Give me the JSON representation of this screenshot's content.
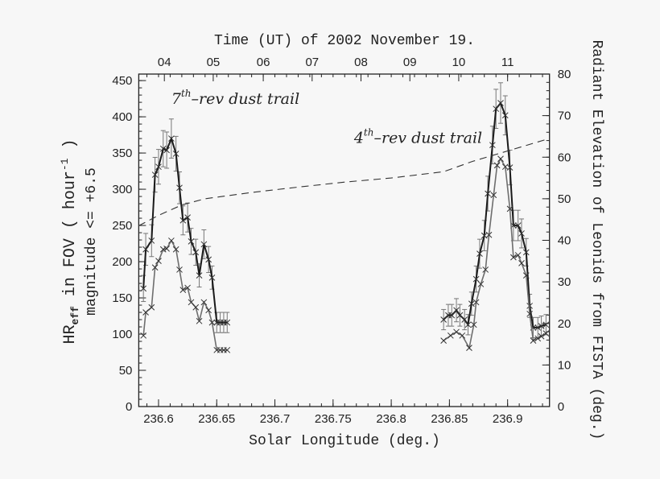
{
  "chart_data": {
    "type": "line",
    "title": "Time (UT) of 2002 November 19.",
    "xlabel": "Solar Longitude (deg.)",
    "ylabel_left": {
      "line1_main": "HR",
      "line1_sub": "eff",
      "line1_rest": " in FOV ( hour",
      "line1_sup": "-1",
      "line1_end": " )",
      "line2": "magnitude <= +6.5"
    },
    "ylabel_right": "Radiant Elevation of Leonids from FISTA (deg.)",
    "xlim": [
      236.583,
      236.936
    ],
    "ylim_left": [
      0,
      459
    ],
    "ylim_right": [
      0,
      80
    ],
    "grid": false,
    "x_ticks": [
      "236.6",
      "236.65",
      "236.7",
      "236.75",
      "236.8",
      "236.85",
      "236.9"
    ],
    "y_ticks_left": [
      "0",
      "50",
      "100",
      "150",
      "200",
      "250",
      "300",
      "350",
      "400",
      "450"
    ],
    "y_ticks_right": [
      "0",
      "10",
      "20",
      "30",
      "40",
      "50",
      "60",
      "70",
      "80"
    ],
    "top_axis_ticks": [
      {
        "label": "04",
        "x": 236.605
      },
      {
        "label": "05",
        "x": 236.647
      },
      {
        "label": "06",
        "x": 236.69
      },
      {
        "label": "07",
        "x": 236.732
      },
      {
        "label": "08",
        "x": 236.774
      },
      {
        "label": "09",
        "x": 236.816
      },
      {
        "label": "10",
        "x": 236.858
      },
      {
        "label": "11",
        "x": 236.9
      }
    ],
    "annotations": [
      {
        "pre": "7",
        "sup": "th",
        "post": "–rev dust trail",
        "x": 236.611,
        "y": 418
      },
      {
        "pre": "4",
        "sup": "th",
        "post": "–rev dust trail",
        "x": 236.768,
        "y": 364
      }
    ],
    "series": [
      {
        "axis": "left",
        "style": "dark",
        "errorbars": true,
        "x": [
          236.587,
          236.589,
          236.594,
          236.597,
          236.6,
          236.604,
          236.607,
          236.611,
          236.615,
          236.618,
          236.621,
          236.625,
          236.628,
          236.632,
          236.635,
          236.639,
          236.643,
          236.646,
          236.65,
          236.653,
          236.656,
          236.659
        ],
        "y": [
          163,
          217,
          229,
          320,
          331,
          356,
          354,
          370,
          349,
          302,
          257,
          261,
          228,
          213,
          181,
          224,
          203,
          178,
          116,
          116,
          116,
          116
        ],
        "err": [
          18,
          22,
          22,
          24,
          24,
          25,
          25,
          27,
          24,
          22,
          20,
          20,
          18,
          18,
          16,
          20,
          18,
          16,
          14,
          14,
          14,
          14
        ]
      },
      {
        "axis": "left",
        "style": "light",
        "errorbars": false,
        "x": [
          236.587,
          236.589,
          236.594,
          236.597,
          236.6,
          236.604,
          236.607,
          236.611,
          236.615,
          236.618,
          236.621,
          236.625,
          236.628,
          236.632,
          236.635,
          236.639,
          236.643,
          236.646,
          236.65,
          236.653,
          236.656,
          236.659
        ],
        "y": [
          98,
          130,
          137,
          192,
          201,
          217,
          218,
          229,
          217,
          189,
          161,
          164,
          144,
          137,
          118,
          144,
          133,
          116,
          78,
          78,
          78,
          78
        ]
      },
      {
        "axis": "left",
        "style": "dark",
        "errorbars": true,
        "x": [
          236.845,
          236.849,
          236.852,
          236.856,
          236.859,
          236.863,
          236.866,
          236.869,
          236.873,
          236.876,
          236.88,
          236.883,
          236.887,
          236.89,
          236.894,
          236.898,
          236.902,
          236.905,
          236.909,
          236.912,
          236.916,
          236.919,
          236.922,
          236.926,
          236.929,
          236.933
        ],
        "y": [
          120,
          126,
          126,
          133,
          126,
          120,
          113,
          142,
          176,
          211,
          236,
          294,
          361,
          411,
          419,
          402,
          330,
          250,
          250,
          239,
          213,
          139,
          109,
          109,
          111,
          113
        ],
        "err": [
          14,
          15,
          15,
          16,
          15,
          14,
          14,
          16,
          18,
          20,
          21,
          24,
          26,
          27,
          28,
          27,
          24,
          21,
          21,
          20,
          19,
          16,
          14,
          14,
          14,
          14
        ]
      },
      {
        "axis": "left",
        "style": "light",
        "errorbars": false,
        "x": [
          236.845,
          236.851,
          236.856,
          236.861,
          236.867,
          236.871,
          236.873,
          236.877,
          236.881,
          236.884,
          236.888,
          236.891,
          236.894,
          236.898,
          236.902,
          236.905,
          236.909,
          236.912,
          236.916,
          236.919,
          236.922,
          236.926,
          236.929,
          236.933
        ],
        "y": [
          91,
          98,
          103,
          98,
          81,
          113,
          144,
          169,
          189,
          237,
          292,
          333,
          342,
          331,
          273,
          206,
          209,
          198,
          181,
          128,
          91,
          94,
          97,
          101
        ]
      },
      {
        "axis": "right",
        "style": "dashed",
        "x": [
          236.583,
          236.6,
          236.62,
          236.64,
          236.68,
          236.72,
          236.76,
          236.8,
          236.845,
          236.87,
          236.9,
          236.936
        ],
        "y": [
          43.5,
          46,
          48.5,
          50,
          51.5,
          52.8,
          54,
          55,
          56.5,
          59,
          61.5,
          64.5
        ]
      }
    ],
    "colors": {
      "background": "#f7f7f7",
      "dark": "#1a1a1a",
      "light": "#6e6e6e",
      "errorbar": "#777777"
    }
  }
}
